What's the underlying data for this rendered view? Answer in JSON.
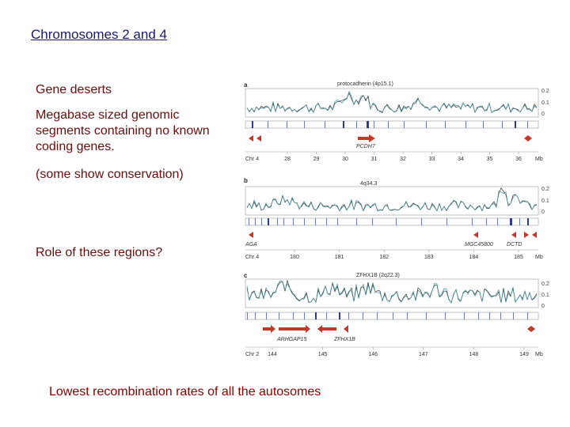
{
  "slide": {
    "title": "Chromosomes 2 and 4",
    "bullets": [
      "Gene deserts",
      "Megabase sized genomic segments containing no known coding genes.",
      "(some show conservation)",
      "Role of these regions?"
    ],
    "bottom_text": "Lowest recombination rates of all the autosomes"
  },
  "figure": {
    "panels": [
      {
        "letter": "a",
        "caption": "protocadherin (4p15.1)",
        "y_ticks": [
          "0.2",
          "0.1",
          "0"
        ],
        "genes": [
          {
            "label": "PCDH7"
          }
        ],
        "chr": "Chr 4",
        "ticks": [
          "28",
          "29",
          "30",
          "31",
          "32",
          "33",
          "34",
          "35",
          "36"
        ],
        "unit": "Mb"
      },
      {
        "letter": "b",
        "caption": "4q34.3",
        "y_ticks": [
          "0.2",
          "0.1",
          "0"
        ],
        "genes": [
          {
            "label": "AGA"
          },
          {
            "label": "MGC45800"
          },
          {
            "label": "DCTD"
          }
        ],
        "chr": "Chr 4",
        "ticks": [
          "180",
          "181",
          "182",
          "183",
          "184",
          "185"
        ],
        "unit": "Mb"
      },
      {
        "letter": "c",
        "caption": "ZFHX1B (2q22.3)",
        "y_ticks": [
          "0.2",
          "0.1",
          "0"
        ],
        "genes": [
          {
            "label": "ARHGAP15"
          },
          {
            "label": "ZFHX1B"
          }
        ],
        "chr": "Chr 2",
        "ticks": [
          "144",
          "145",
          "146",
          "147",
          "148",
          "149"
        ],
        "unit": "Mb"
      }
    ],
    "colors": {
      "arrow": "#c0392b",
      "gene_tick": "#3a4fa0",
      "trace_dark": "#333333",
      "trace_teal": "#3a8f9a"
    }
  }
}
